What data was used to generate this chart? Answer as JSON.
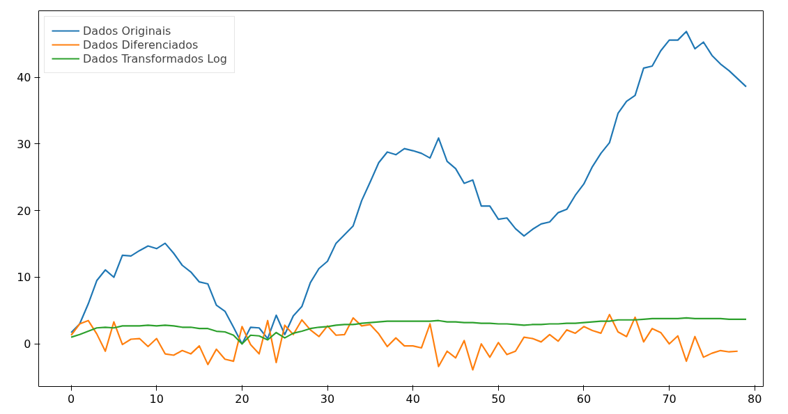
{
  "chart_data": {
    "type": "line",
    "xlim": [
      -3.8,
      81
    ],
    "xticks": [
      0,
      10,
      20,
      30,
      40,
      50,
      60,
      70,
      80
    ],
    "ylim": [
      -6.4,
      50
    ],
    "yticks": [
      0,
      10,
      20,
      30,
      40
    ],
    "grid": false,
    "legend": "top left",
    "line_style": "solid",
    "marker": "none",
    "series": [
      {
        "name": "Dados Originais",
        "color": "#1f77b4",
        "x": [
          0,
          1,
          2,
          3,
          4,
          5,
          6,
          7,
          8,
          9,
          10,
          11,
          12,
          13,
          14,
          15,
          16,
          17,
          18,
          19,
          20,
          21,
          22,
          23,
          24,
          25,
          26,
          27,
          28,
          29,
          30,
          31,
          32,
          33,
          34,
          35,
          36,
          37,
          38,
          39,
          40,
          41,
          42,
          43,
          44,
          45,
          46,
          47,
          48,
          49,
          50,
          51,
          52,
          53,
          54,
          55,
          56,
          57,
          58,
          59,
          60,
          61,
          62,
          63,
          64,
          65,
          66,
          67,
          68,
          69,
          70,
          71,
          72,
          73,
          74,
          75,
          76,
          77,
          78,
          79
        ],
        "values": [
          1.7,
          3.0,
          6,
          9.5,
          11.1,
          10,
          13.3,
          13.2,
          14,
          14.7,
          14.3,
          15.1,
          13.6,
          11.8,
          10.8,
          9.3,
          9.0,
          5.8,
          4.9,
          2.5,
          0,
          2.5,
          2.4,
          0.8,
          4.3,
          1.4,
          4.2,
          5.6,
          9.2,
          11.3,
          12.4,
          15.1,
          16.4,
          17.7,
          21.5,
          24.3,
          27.2,
          28.8,
          28.4,
          29.3,
          29.0,
          28.6,
          27.9,
          30.9,
          27.4,
          26.3,
          24.1,
          24.6,
          20.7,
          20.7,
          18.7,
          18.9,
          17.3,
          16.2,
          17.2,
          18.0,
          18.3,
          19.7,
          20.2,
          22.3,
          24.0,
          26.6,
          28.6,
          30.2,
          34.6,
          36.4,
          37.3,
          41.4,
          41.7,
          44.0,
          45.6,
          45.6,
          46.9,
          44.3,
          45.3,
          43.3,
          42.0,
          41.0,
          39.8,
          38.6
        ]
      },
      {
        "name": "Dados Diferenciados",
        "color": "#ff7f0e",
        "x": [
          0,
          1,
          2,
          3,
          4,
          5,
          6,
          7,
          8,
          9,
          10,
          11,
          12,
          13,
          14,
          15,
          16,
          17,
          18,
          19,
          20,
          21,
          22,
          23,
          24,
          25,
          26,
          27,
          28,
          29,
          30,
          31,
          32,
          33,
          34,
          35,
          36,
          37,
          38,
          39,
          40,
          41,
          42,
          43,
          44,
          45,
          46,
          47,
          48,
          49,
          50,
          51,
          52,
          53,
          54,
          55,
          56,
          57,
          58,
          59,
          60,
          61,
          62,
          63,
          64,
          65,
          66,
          67,
          68,
          69,
          70,
          71,
          72,
          73,
          74,
          75,
          76,
          77,
          78
        ],
        "values": [
          1.3,
          3.0,
          3.5,
          1.5,
          -1.1,
          3.3,
          -0.1,
          0.7,
          0.8,
          -0.4,
          0.8,
          -1.5,
          -1.7,
          -1.0,
          -1.5,
          -0.3,
          -3.1,
          -0.8,
          -2.3,
          -2.6,
          2.6,
          -0.1,
          -1.5,
          3.5,
          -2.8,
          2.8,
          1.4,
          3.6,
          2.1,
          1.1,
          2.7,
          1.3,
          1.4,
          3.9,
          2.7,
          2.9,
          1.5,
          -0.4,
          0.9,
          -0.3,
          -0.3,
          -0.6,
          3.0,
          -3.4,
          -1.1,
          -2.1,
          0.5,
          -3.9,
          0.0,
          -2.0,
          0.2,
          -1.6,
          -1.1,
          1.0,
          0.8,
          0.3,
          1.4,
          0.4,
          2.1,
          1.6,
          2.6,
          2.0,
          1.6,
          4.4,
          1.8,
          1.1,
          4.0,
          0.3,
          2.3,
          1.7,
          0.0,
          1.2,
          -2.6,
          1.1,
          -2.0,
          -1.4,
          -1.0,
          -1.2,
          -1.1
        ]
      },
      {
        "name": "Dados Transformados Log",
        "color": "#2ca02c",
        "x": [
          0,
          1,
          2,
          3,
          4,
          5,
          6,
          7,
          8,
          9,
          10,
          11,
          12,
          13,
          14,
          15,
          16,
          17,
          18,
          19,
          20,
          21,
          22,
          23,
          24,
          25,
          26,
          27,
          28,
          29,
          30,
          31,
          32,
          33,
          34,
          35,
          36,
          37,
          38,
          39,
          40,
          41,
          42,
          43,
          44,
          45,
          46,
          47,
          48,
          49,
          50,
          51,
          52,
          53,
          54,
          55,
          56,
          57,
          58,
          59,
          60,
          61,
          62,
          63,
          64,
          65,
          66,
          67,
          68,
          69,
          70,
          71,
          72,
          73,
          74,
          75,
          76,
          77,
          78,
          79
        ],
        "values": [
          1.0,
          1.4,
          1.9,
          2.4,
          2.5,
          2.4,
          2.7,
          2.7,
          2.7,
          2.8,
          2.7,
          2.8,
          2.7,
          2.5,
          2.5,
          2.3,
          2.3,
          1.9,
          1.8,
          1.3,
          0.0,
          1.3,
          1.2,
          0.6,
          1.7,
          0.9,
          1.6,
          1.9,
          2.3,
          2.5,
          2.6,
          2.8,
          2.9,
          2.9,
          3.1,
          3.2,
          3.3,
          3.4,
          3.4,
          3.4,
          3.4,
          3.4,
          3.4,
          3.5,
          3.3,
          3.3,
          3.2,
          3.2,
          3.1,
          3.1,
          3.0,
          3.0,
          2.9,
          2.8,
          2.9,
          2.9,
          3.0,
          3.0,
          3.1,
          3.1,
          3.2,
          3.3,
          3.4,
          3.4,
          3.6,
          3.6,
          3.6,
          3.7,
          3.8,
          3.8,
          3.8,
          3.8,
          3.9,
          3.8,
          3.8,
          3.8,
          3.8,
          3.7,
          3.7,
          3.7
        ]
      }
    ]
  }
}
